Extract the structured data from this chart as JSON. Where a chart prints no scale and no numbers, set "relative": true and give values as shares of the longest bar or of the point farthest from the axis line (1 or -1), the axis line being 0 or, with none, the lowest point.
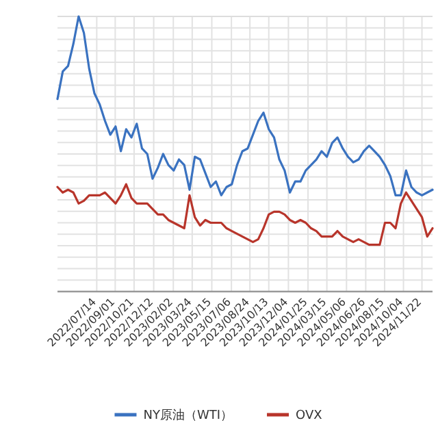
{
  "chart_data": {
    "type": "line",
    "relative": true,
    "grid": true,
    "legend": "bottom",
    "marker": "none",
    "line_style": "solid",
    "x": [
      "2022-04-01",
      "2022-04-15",
      "2022-04-29",
      "2022-05-13",
      "2022-05-27",
      "2022-06-10",
      "2022-06-24",
      "2022-07-08",
      "2022-07-22",
      "2022-08-05",
      "2022-08-19",
      "2022-09-02",
      "2022-09-16",
      "2022-09-30",
      "2022-10-14",
      "2022-10-28",
      "2022-11-11",
      "2022-11-25",
      "2022-12-09",
      "2022-12-23",
      "2023-01-06",
      "2023-01-20",
      "2023-02-03",
      "2023-02-17",
      "2023-03-03",
      "2023-03-17",
      "2023-03-31",
      "2023-04-14",
      "2023-04-28",
      "2023-05-12",
      "2023-05-26",
      "2023-06-09",
      "2023-06-23",
      "2023-07-07",
      "2023-07-21",
      "2023-08-04",
      "2023-08-18",
      "2023-09-01",
      "2023-09-15",
      "2023-09-29",
      "2023-10-13",
      "2023-10-27",
      "2023-11-10",
      "2023-11-24",
      "2023-12-08",
      "2023-12-22",
      "2024-01-05",
      "2024-01-19",
      "2024-02-02",
      "2024-02-16",
      "2024-03-01",
      "2024-03-15",
      "2024-03-29",
      "2024-04-12",
      "2024-04-26",
      "2024-05-10",
      "2024-05-24",
      "2024-06-07",
      "2024-06-21",
      "2024-07-05",
      "2024-07-19",
      "2024-08-02",
      "2024-08-16",
      "2024-08-30",
      "2024-09-13",
      "2024-09-27",
      "2024-10-11",
      "2024-10-25",
      "2024-11-08",
      "2024-11-22",
      "2024-12-06",
      "2024-12-20"
    ],
    "xlim": [
      "2022-04-01",
      "2024-12-20"
    ],
    "xticks": [
      {
        "value": "2022-07-14",
        "label": "2022/07/14"
      },
      {
        "value": "2022-09-01",
        "label": "2022/09/01"
      },
      {
        "value": "2022-10-21",
        "label": "2022/10/21"
      },
      {
        "value": "2022-12-12",
        "label": "2022/12/12"
      },
      {
        "value": "2023-02-02",
        "label": "2023/02/02"
      },
      {
        "value": "2023-03-24",
        "label": "2023/03/24"
      },
      {
        "value": "2023-05-15",
        "label": "2023/05/15"
      },
      {
        "value": "2023-07-06",
        "label": "2023/07/06"
      },
      {
        "value": "2023-08-24",
        "label": "2023/08/24"
      },
      {
        "value": "2023-10-13",
        "label": "2023/10/13"
      },
      {
        "value": "2023-12-04",
        "label": "2023/12/04"
      },
      {
        "value": "2024-01-25",
        "label": "2024/01/25"
      },
      {
        "value": "2024-03-15",
        "label": "2024/03/15"
      },
      {
        "value": "2024-05-06",
        "label": "2024/05/06"
      },
      {
        "value": "2024-06-26",
        "label": "2024/06/26"
      },
      {
        "value": "2024-08-15",
        "label": "2024/08/15"
      },
      {
        "value": "2024-10-04",
        "label": "2024/10/04"
      },
      {
        "value": "2024-11-22",
        "label": "2024/11/22"
      }
    ],
    "series": [
      {
        "name": "NY原油（WTI）",
        "color": "#3a72c0",
        "values": [
          0.7,
          0.8,
          0.82,
          0.9,
          1.0,
          0.94,
          0.81,
          0.72,
          0.68,
          0.62,
          0.57,
          0.6,
          0.51,
          0.59,
          0.56,
          0.61,
          0.52,
          0.5,
          0.41,
          0.45,
          0.5,
          0.46,
          0.44,
          0.48,
          0.46,
          0.37,
          0.49,
          0.48,
          0.43,
          0.38,
          0.4,
          0.35,
          0.38,
          0.39,
          0.46,
          0.51,
          0.52,
          0.57,
          0.62,
          0.65,
          0.59,
          0.56,
          0.48,
          0.44,
          0.36,
          0.4,
          0.4,
          0.44,
          0.46,
          0.48,
          0.51,
          0.49,
          0.54,
          0.56,
          0.52,
          0.49,
          0.47,
          0.48,
          0.51,
          0.53,
          0.51,
          0.49,
          0.46,
          0.42,
          0.35,
          0.35,
          0.44,
          0.38,
          0.36,
          0.35,
          0.36,
          0.37
        ]
      },
      {
        "name": "OVX",
        "color": "#b8352b",
        "values": [
          0.38,
          0.36,
          0.37,
          0.36,
          0.32,
          0.33,
          0.35,
          0.35,
          0.35,
          0.36,
          0.34,
          0.32,
          0.35,
          0.39,
          0.34,
          0.32,
          0.32,
          0.32,
          0.3,
          0.28,
          0.28,
          0.26,
          0.25,
          0.24,
          0.23,
          0.35,
          0.27,
          0.24,
          0.26,
          0.25,
          0.25,
          0.25,
          0.23,
          0.22,
          0.21,
          0.2,
          0.19,
          0.18,
          0.19,
          0.23,
          0.28,
          0.29,
          0.29,
          0.28,
          0.26,
          0.25,
          0.26,
          0.25,
          0.23,
          0.22,
          0.2,
          0.2,
          0.2,
          0.22,
          0.2,
          0.19,
          0.18,
          0.19,
          0.18,
          0.17,
          0.17,
          0.17,
          0.25,
          0.25,
          0.23,
          0.32,
          0.36,
          0.33,
          0.3,
          0.27,
          0.2,
          0.23
        ]
      }
    ]
  }
}
